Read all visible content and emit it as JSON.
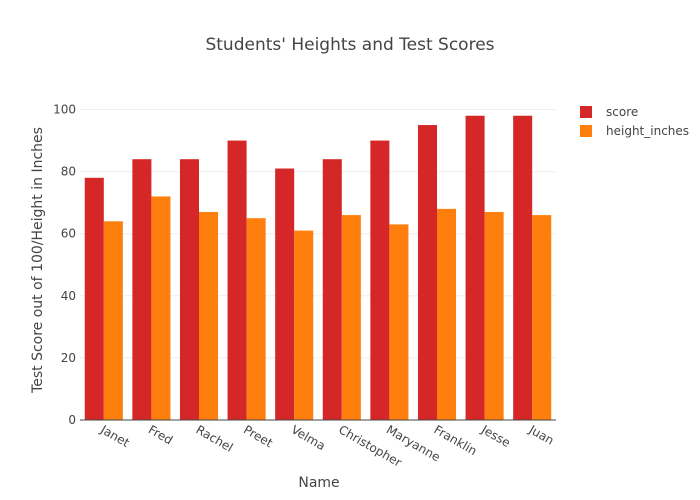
{
  "chart_data": {
    "type": "bar",
    "title": "Students' Heights and Test Scores",
    "xlabel": "Name",
    "ylabel": "Test Score out of 100/Height in Inches",
    "ylim": [
      0,
      105
    ],
    "yticks": [
      0,
      20,
      40,
      60,
      80,
      100
    ],
    "grid": true,
    "legend_position": "top-right",
    "categories": [
      "Janet",
      "Fred",
      "Rachel",
      "Preet",
      "Velma",
      "Christopher",
      "Maryanne",
      "Franklin",
      "Jesse",
      "Juan"
    ],
    "series": [
      {
        "name": "score",
        "color": "#d62728",
        "values": [
          78,
          84,
          84,
          90,
          81,
          84,
          90,
          95,
          98,
          98
        ]
      },
      {
        "name": "height_inches",
        "color": "#ff7f0e",
        "values": [
          64,
          72,
          67,
          65,
          61,
          66,
          63,
          68,
          67,
          66
        ]
      }
    ]
  }
}
